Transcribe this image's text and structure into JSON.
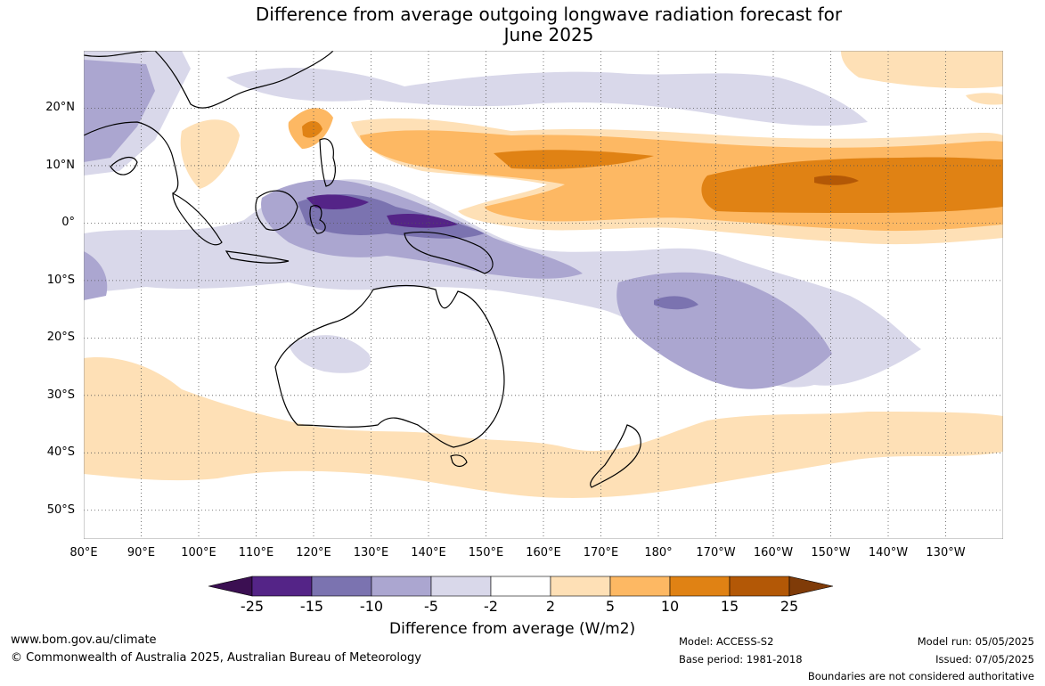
{
  "title": {
    "line1": "Difference from average outgoing longwave radiation forecast for",
    "line2": "June 2025"
  },
  "map": {
    "longitude_labels": [
      "80°E",
      "90°E",
      "100°E",
      "110°E",
      "120°E",
      "130°E",
      "140°E",
      "150°E",
      "160°E",
      "170°E",
      "180°",
      "170°W",
      "160°W",
      "150°W",
      "140°W",
      "130°W"
    ],
    "latitude_labels": [
      "20°N",
      "10°N",
      "0°",
      "10°S",
      "20°S",
      "30°S",
      "40°S",
      "50°S"
    ],
    "longitude_range": [
      80,
      240
    ],
    "latitude_range": [
      -55,
      30
    ],
    "gridlines": "dotted"
  },
  "colorbar": {
    "title": "Difference from average (W/m2)",
    "tick_labels": [
      "-25",
      "-15",
      "-10",
      "-5",
      "-2",
      "2",
      "5",
      "10",
      "15",
      "25"
    ],
    "colors": [
      "#3b0f52",
      "#542487",
      "#7b73b0",
      "#aba6d0",
      "#d9d8ea",
      "#ffffff",
      "#fee0b6",
      "#fdb863",
      "#e08214",
      "#b35806",
      "#7f3b08"
    ]
  },
  "footer": {
    "website": "www.bom.gov.au/climate",
    "copyright": "© Commonwealth of Australia 2025, Australian Bureau of Meteorology",
    "model": "Model: ACCESS-S2",
    "base_period": "Base period: 1981-2018",
    "model_run": "Model run: 05/05/2025",
    "issued": "Issued: 07/05/2025",
    "disclaimer": "Boundaries are not considered authoritative"
  }
}
